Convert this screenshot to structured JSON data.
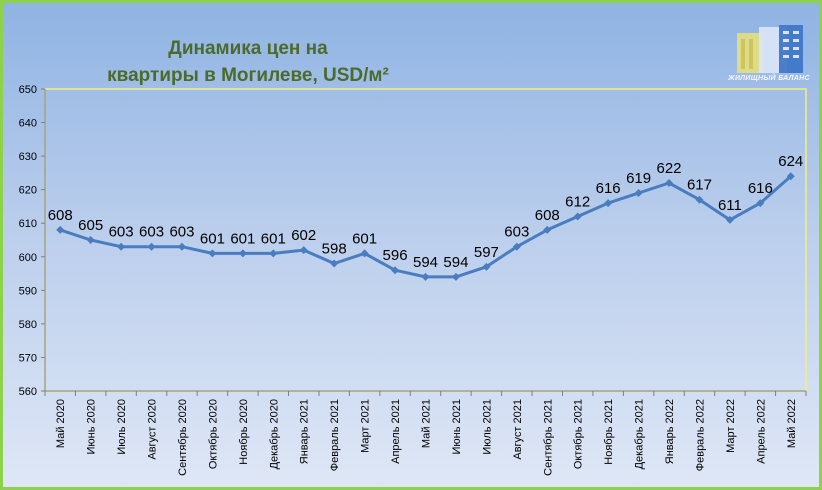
{
  "chart_data": {
    "type": "line",
    "title_lines": [
      "Динамика цен на",
      "квартиры в Могилеве, USD/м²"
    ],
    "categories": [
      "Май 2020",
      "Июнь 2020",
      "Июль 2020",
      "Август 2020",
      "Сентябрь 2020",
      "Октябрь 2020",
      "Ноябрь 2020",
      "Декабрь 2020",
      "Январь 2021",
      "Февраль 2021",
      "Март 2021",
      "Апрель 2021",
      "Май 2021",
      "Июнь 2021",
      "Июль 2021",
      "Август 2021",
      "Сентябрь 2021",
      "Октябрь 2021",
      "Ноябрь 2021",
      "Декабрь 2021",
      "Январь 2022",
      "Февраль 2022",
      "Март 2022",
      "Апрель 2022",
      "Май 2022"
    ],
    "values": [
      608,
      605,
      603,
      603,
      603,
      601,
      601,
      601,
      602,
      598,
      601,
      596,
      594,
      594,
      597,
      603,
      608,
      612,
      616,
      619,
      622,
      617,
      611,
      616,
      624
    ],
    "ylim": [
      560,
      650
    ],
    "yticks": [
      560,
      570,
      580,
      590,
      600,
      610,
      620,
      630,
      640,
      650
    ],
    "grid": false,
    "series_color": "#4a7dbf"
  },
  "logo": {
    "text": "ЖИЛИЩНЫЙ БАЛАНС"
  }
}
